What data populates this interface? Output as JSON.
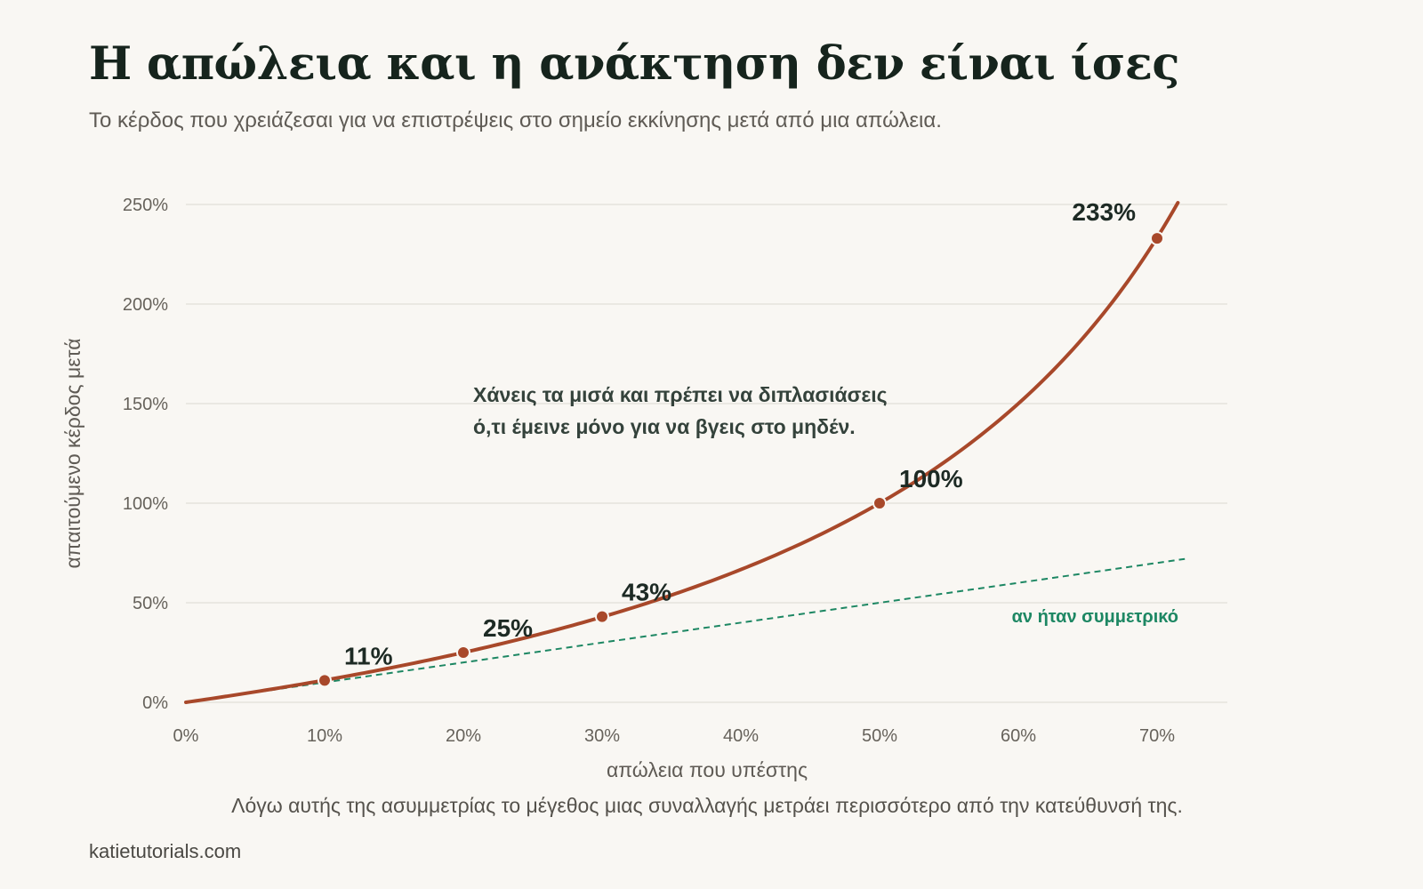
{
  "header": {
    "title": "Η απώλεια και η ανάκτηση δεν είναι ίσες",
    "subtitle": "Το κέρδος που χρειάζεσαι για να επιστρέψεις στο σημείο εκκίνησης μετά από μια απώλεια."
  },
  "footer": {
    "note": "Λόγω αυτής της ασυμμετρίας το μέγεθος μιας συναλλαγής μετράει περισσότερο από την κατεύθυνσή της.",
    "source": "katietutorials.com"
  },
  "chart_data": {
    "type": "line",
    "xlabel": "απώλεια που υπέστης",
    "ylabel": "απαιτούμενο κέρδος μετά",
    "xlim": [
      0,
      72
    ],
    "ylim": [
      0,
      250
    ],
    "x_ticks": [
      0,
      10,
      20,
      30,
      40,
      50,
      60,
      70
    ],
    "x_tick_labels": [
      "0%",
      "10%",
      "20%",
      "30%",
      "40%",
      "50%",
      "60%",
      "70%"
    ],
    "y_ticks": [
      0,
      50,
      100,
      150,
      200,
      250
    ],
    "y_tick_labels": [
      "0%",
      "50%",
      "100%",
      "150%",
      "200%",
      "250%"
    ],
    "grid": "horizontal",
    "series": [
      {
        "role": "recovery-curve",
        "color": "#a8482a",
        "style": "solid",
        "x": [
          0,
          5,
          10,
          15,
          20,
          25,
          30,
          35,
          40,
          45,
          50,
          55,
          60,
          65,
          70,
          71.5
        ],
        "y": [
          0,
          5.3,
          11.1,
          17.6,
          25.0,
          33.3,
          42.9,
          53.8,
          66.7,
          81.8,
          100,
          122.2,
          150,
          185.7,
          233.3,
          250.9
        ]
      },
      {
        "name": "αν ήταν συμμετρικό",
        "role": "symmetric-line",
        "color": "#1d8763",
        "style": "dashed",
        "x": [
          0,
          72
        ],
        "y": [
          0,
          72
        ]
      }
    ],
    "points": [
      {
        "x": 10,
        "y": 11,
        "label": "11%"
      },
      {
        "x": 20,
        "y": 25,
        "label": "25%"
      },
      {
        "x": 30,
        "y": 43,
        "label": "43%"
      },
      {
        "x": 50,
        "y": 100,
        "label": "100%"
      },
      {
        "x": 70,
        "y": 233,
        "label": "233%"
      }
    ],
    "annotation": {
      "lines": [
        "Χάνεις τα μισά και πρέπει να διπλασιάσεις",
        "ό,τι έμεινε μόνο για να βγεις στο μηδέν."
      ]
    }
  }
}
